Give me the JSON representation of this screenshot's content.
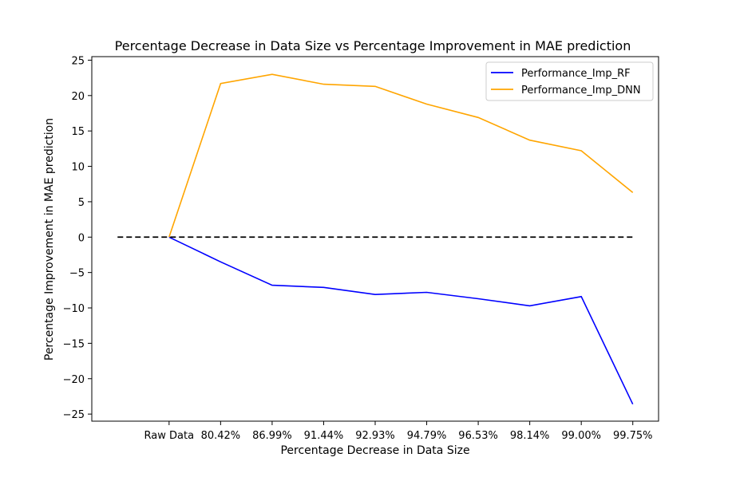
{
  "chart_data": {
    "type": "line",
    "title": "Percentage Decrease in Data Size vs Percentage Improvement in MAE prediction",
    "xlabel": "Percentage Decrease in Data Size",
    "ylabel": "Percentage Improvement in MAE prediction",
    "categories": [
      "Raw Data",
      "80.42%",
      "86.99%",
      "91.44%",
      "92.93%",
      "94.79%",
      "96.53%",
      "98.14%",
      "99.00%",
      "99.75%"
    ],
    "series": [
      {
        "name": "Performance_Imp_RF",
        "color": "#0000ff",
        "values": [
          0,
          -3.5,
          -6.8,
          -7.1,
          -8.1,
          -7.8,
          -8.7,
          -9.7,
          -8.4,
          -23.6
        ]
      },
      {
        "name": "Performance_Imp_DNN",
        "color": "#ffa500",
        "values": [
          0,
          21.7,
          23.0,
          21.6,
          21.3,
          18.8,
          16.9,
          13.7,
          12.2,
          6.3
        ]
      }
    ],
    "reference_line": {
      "y": 0,
      "x_from_index": -1,
      "x_to_index": 9,
      "style": "dashed",
      "color": "#000000"
    },
    "xlim_index": [
      -1.5,
      9.5
    ],
    "ylim": [
      -26,
      25.5
    ],
    "yticks": [
      25,
      20,
      15,
      10,
      5,
      0,
      -5,
      -10,
      -15,
      -20,
      -25
    ],
    "ytick_labels": [
      "25",
      "20",
      "15",
      "10",
      "5",
      "0",
      "−5",
      "−10",
      "−15",
      "−20",
      "−25"
    ],
    "legend_position": "top-right",
    "grid": false
  }
}
